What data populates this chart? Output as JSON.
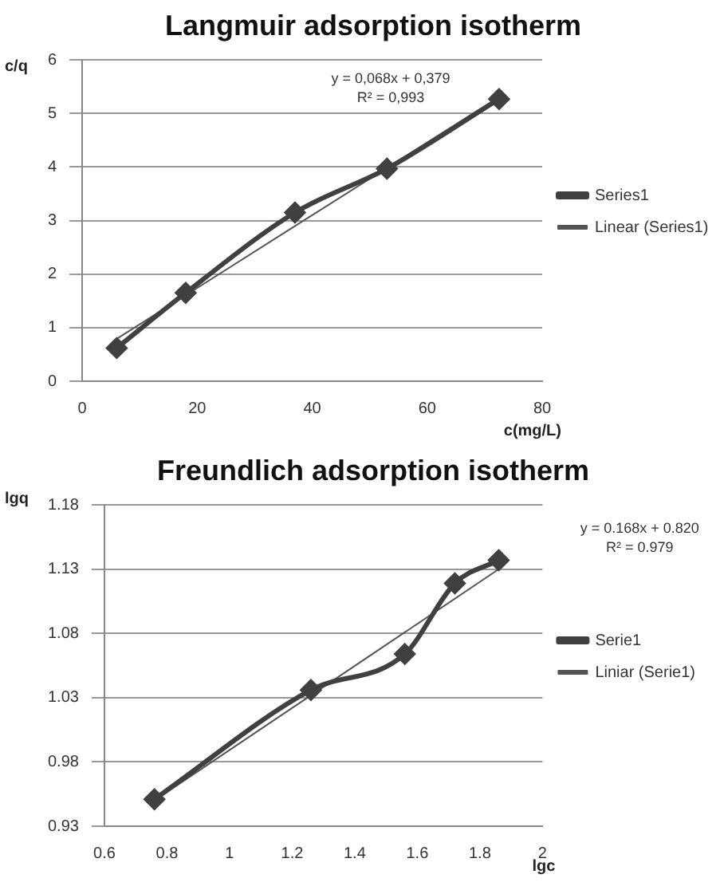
{
  "chart_data": [
    {
      "type": "line",
      "title": "Langmuir adsorption isotherm",
      "xlabel": "c(mg/L)",
      "ylabel": "c/q",
      "x": [
        6,
        18,
        37,
        53,
        72.5
      ],
      "series": [
        {
          "name": "Series1",
          "color": "#404040",
          "values": [
            0.62,
            1.65,
            3.15,
            3.97,
            5.27
          ],
          "marker": "diamond",
          "line_style": "solid"
        },
        {
          "name": "Linear (Series1)",
          "type": "line",
          "color": "#555555",
          "x": [
            6,
            72.5
          ],
          "values": [
            0.79,
            5.31
          ],
          "marker": "none",
          "line_style": "solid"
        }
      ],
      "xlim": [
        0,
        80
      ],
      "xticks": [
        0,
        20,
        40,
        60,
        80
      ],
      "ylim": [
        0,
        6
      ],
      "yticks": [
        0,
        1,
        2,
        3,
        4,
        5,
        6
      ],
      "grid": "y",
      "legend": "right",
      "annotations": [
        "y = 0,068x + 0,379",
        "R² = 0,993"
      ]
    },
    {
      "type": "line",
      "title": "Freundlich adsorption isotherm",
      "xlabel": "lgc",
      "ylabel": "lgq",
      "x": [
        0.76,
        1.26,
        1.56,
        1.72,
        1.86
      ],
      "series": [
        {
          "name": "Serie1",
          "color": "#404040",
          "values": [
            0.951,
            1.036,
            1.064,
            1.119,
            1.137
          ],
          "marker": "diamond",
          "line_style": "solid"
        },
        {
          "name": "Liniar (Serie1)",
          "type": "line",
          "color": "#555555",
          "x": [
            0.76,
            1.86
          ],
          "values": [
            0.95,
            1.13
          ],
          "marker": "none",
          "line_style": "solid"
        }
      ],
      "xlim": [
        0.6,
        2
      ],
      "xticks": [
        0.6,
        0.8,
        1,
        1.2,
        1.4,
        1.6,
        1.8,
        2
      ],
      "ylim": [
        0.93,
        1.18
      ],
      "yticks": [
        0.93,
        0.98,
        1.03,
        1.08,
        1.13,
        1.18
      ],
      "grid": "y",
      "legend": "right",
      "annotations": [
        "y = 0.168x + 0.820",
        "R² = 0.979"
      ]
    }
  ]
}
